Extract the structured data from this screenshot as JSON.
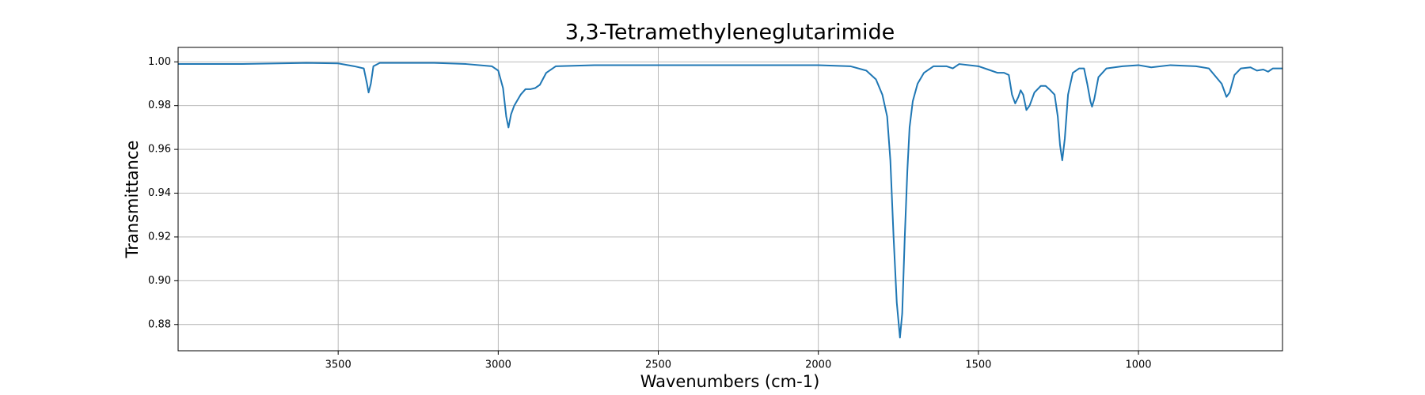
{
  "chart_data": {
    "type": "line",
    "title": "3,3-Tetramethyleneglutarimide",
    "x_label": "Wavenumbers (cm-1)",
    "y_label": "Transmittance",
    "color": "#1f77b4",
    "grid": true,
    "xlim": [
      4000,
      550
    ],
    "ylim": [
      0.868,
      1.0066
    ],
    "xticks": [
      3500,
      3000,
      2500,
      2000,
      1500,
      1000
    ],
    "yticks": [
      {
        "value": 1.0,
        "label": "1.00"
      },
      {
        "value": 0.98,
        "label": "0.98"
      },
      {
        "value": 0.96,
        "label": "0.96"
      },
      {
        "value": 0.94,
        "label": "0.94"
      },
      {
        "value": 0.92,
        "label": "0.92"
      },
      {
        "value": 0.9,
        "label": "0.90"
      },
      {
        "value": 0.88,
        "label": "0.88"
      }
    ],
    "x": [
      4000,
      3800,
      3600,
      3500,
      3450,
      3420,
      3410,
      3405,
      3398,
      3390,
      3370,
      3200,
      3100,
      3020,
      3000,
      2985,
      2975,
      2968,
      2960,
      2950,
      2930,
      2915,
      2900,
      2885,
      2870,
      2850,
      2820,
      2700,
      2500,
      2200,
      2000,
      1900,
      1850,
      1820,
      1800,
      1785,
      1775,
      1765,
      1755,
      1745,
      1738,
      1730,
      1722,
      1715,
      1705,
      1690,
      1670,
      1640,
      1600,
      1580,
      1560,
      1500,
      1460,
      1440,
      1420,
      1405,
      1395,
      1385,
      1375,
      1368,
      1360,
      1350,
      1340,
      1325,
      1305,
      1290,
      1275,
      1262,
      1252,
      1245,
      1238,
      1230,
      1220,
      1205,
      1185,
      1170,
      1160,
      1150,
      1145,
      1138,
      1125,
      1100,
      1050,
      1000,
      960,
      900,
      820,
      780,
      740,
      725,
      715,
      700,
      680,
      650,
      630,
      610,
      595,
      580,
      550
    ],
    "values": [
      0.999,
      0.999,
      0.9995,
      0.9993,
      0.998,
      0.997,
      0.99,
      0.986,
      0.99,
      0.998,
      0.9995,
      0.9995,
      0.999,
      0.998,
      0.996,
      0.988,
      0.975,
      0.97,
      0.976,
      0.98,
      0.985,
      0.9875,
      0.9875,
      0.988,
      0.9895,
      0.995,
      0.998,
      0.9985,
      0.9985,
      0.9985,
      0.9985,
      0.998,
      0.996,
      0.992,
      0.985,
      0.975,
      0.955,
      0.92,
      0.89,
      0.874,
      0.885,
      0.92,
      0.95,
      0.97,
      0.982,
      0.99,
      0.995,
      0.998,
      0.998,
      0.997,
      0.999,
      0.998,
      0.996,
      0.995,
      0.995,
      0.994,
      0.985,
      0.981,
      0.984,
      0.987,
      0.985,
      0.978,
      0.98,
      0.986,
      0.989,
      0.989,
      0.987,
      0.985,
      0.975,
      0.962,
      0.955,
      0.965,
      0.985,
      0.995,
      0.997,
      0.997,
      0.99,
      0.982,
      0.9795,
      0.983,
      0.993,
      0.997,
      0.998,
      0.9985,
      0.9975,
      0.9985,
      0.998,
      0.997,
      0.99,
      0.984,
      0.986,
      0.994,
      0.997,
      0.9975,
      0.996,
      0.9965,
      0.9955,
      0.997,
      0.997
    ]
  }
}
